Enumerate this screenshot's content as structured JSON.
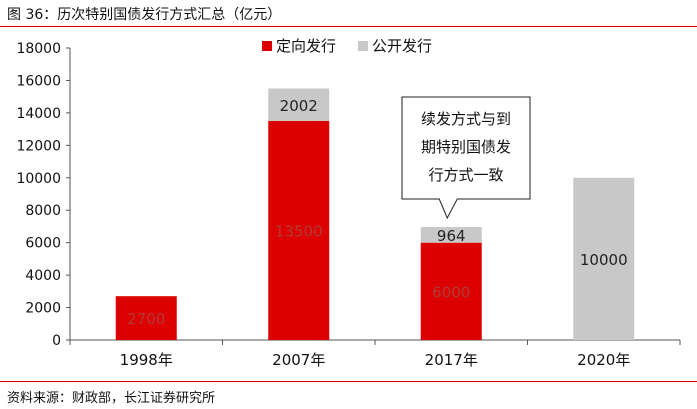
{
  "figure": {
    "title": "图 36：历次特别国债发行方式汇总（亿元）",
    "source": "资料来源：财政部，长江证券研究所"
  },
  "chart_data": {
    "type": "bar",
    "stacked": true,
    "categories": [
      "1998年",
      "2007年",
      "2017年",
      "2020年"
    ],
    "series": [
      {
        "name": "定向发行",
        "color": "#dc0000",
        "values": [
          2700,
          13500,
          6000,
          0
        ],
        "labels": [
          "2700",
          "13500",
          "6000",
          ""
        ],
        "label_color": "#b33a3a"
      },
      {
        "name": "公开发行",
        "color": "#c8c8c8",
        "values": [
          0,
          2002,
          964,
          10000
        ],
        "labels": [
          "",
          "2002",
          "964",
          "10000"
        ],
        "label_color": "#222222"
      }
    ],
    "ylim": [
      0,
      18000
    ],
    "yticks": [
      "0",
      "2000",
      "4000",
      "6000",
      "8000",
      "10000",
      "12000",
      "14000",
      "16000",
      "18000"
    ],
    "grid": false,
    "legend_position": "top-center",
    "annotation": {
      "category": "2017年",
      "lines": [
        "续发方式与到",
        "期特别国债发",
        "行方式一致"
      ]
    }
  }
}
